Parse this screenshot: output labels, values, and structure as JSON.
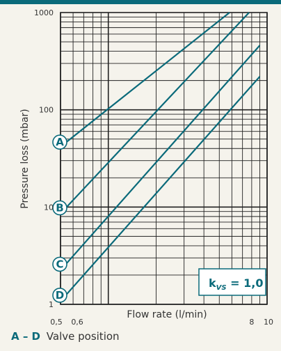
{
  "chart_data": {
    "type": "line",
    "xlabel": "Flow rate (l/min)",
    "ylabel": "Pressure loss (mbar)",
    "x_scale": "log",
    "y_scale": "log",
    "xlim": [
      0.5,
      10
    ],
    "ylim": [
      1,
      1000
    ],
    "x_tick_labels": [
      "0,5",
      "0,6",
      "8",
      "10"
    ],
    "y_tick_labels": [
      "1",
      "10",
      "100",
      "1000"
    ],
    "grid": true,
    "series": [
      {
        "name": "A",
        "x": [
          0.53,
          5.8
        ],
        "y": [
          45,
          1000
        ]
      },
      {
        "name": "B",
        "x": [
          0.53,
          7.7
        ],
        "y": [
          9.5,
          1000
        ]
      },
      {
        "name": "C",
        "x": [
          0.53,
          9.0
        ],
        "y": [
          2.5,
          460
        ]
      },
      {
        "name": "D",
        "x": [
          0.53,
          9.0
        ],
        "y": [
          1.2,
          220
        ]
      }
    ],
    "annotation": {
      "text": "k",
      "sub": "VS",
      "suffix": " = 1,0"
    }
  },
  "footer": {
    "key": "A – D",
    "text": "Valve position"
  },
  "colors": {
    "line": "#0a6a7a",
    "grid": "#222222",
    "accent": "#0a6a7a"
  }
}
